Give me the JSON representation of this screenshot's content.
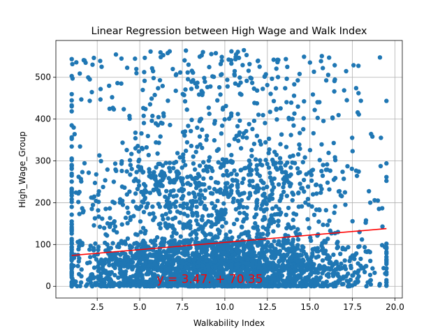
{
  "chart_data": {
    "type": "scatter",
    "title": "Linear Regression between High Wage and Walk Index",
    "xlabel": "Walkability Index",
    "ylabel": "High_Wage_Group",
    "xlim": [
      0.07,
      20.43
    ],
    "ylim": [
      -28,
      588
    ],
    "xticks": [
      2.5,
      5.0,
      7.5,
      10.0,
      12.5,
      15.0,
      17.5,
      20.0
    ],
    "xtick_labels": [
      "2.5",
      "5.0",
      "7.5",
      "10.0",
      "12.5",
      "15.0",
      "17.5",
      "20.0"
    ],
    "yticks": [
      0,
      100,
      200,
      300,
      400,
      500
    ],
    "ytick_labels": [
      "0",
      "100",
      "200",
      "300",
      "400",
      "500"
    ],
    "grid": true,
    "series": [
      {
        "color": "#1f77b4",
        "marker": "circle",
        "x_range": [
          1.0,
          19.5
        ],
        "y_range": [
          0,
          565
        ],
        "approx_points": 3500
      }
    ],
    "regression": {
      "slope": 3.47,
      "intercept": 70.35,
      "x_range": [
        1.0,
        19.5
      ],
      "color": "#ff0000",
      "equation_label": "y = 3.47. + 70.35",
      "label_position": {
        "x": 6.0,
        "y": 8
      }
    }
  }
}
